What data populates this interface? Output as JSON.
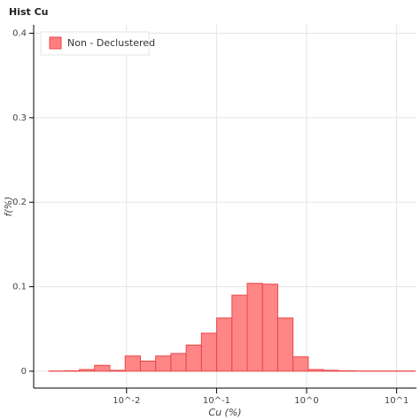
{
  "chart_data": {
    "type": "histogram",
    "title": "Hist Cu",
    "xlabel": "Cu (%)",
    "ylabel": "f(%)",
    "series": [
      {
        "name": "Non - Declustered",
        "color": "#ff7f7f",
        "bins": [
          0.001371,
          0.002025,
          0.002992,
          0.00442,
          0.006531,
          0.009649,
          0.01426,
          0.02106,
          0.03112,
          0.04597,
          0.06792,
          0.1003,
          0.1483,
          0.219,
          0.3236,
          0.4781,
          0.7063,
          1.043,
          1.542,
          2.278,
          3.365,
          4.972,
          7.345,
          10.85,
          16.03
        ],
        "values": [
          0.0003,
          0.0005,
          0.002,
          0.007,
          0.001,
          0.018,
          0.012,
          0.018,
          0.021,
          0.031,
          0.045,
          0.063,
          0.09,
          0.104,
          0.103,
          0.063,
          0.017,
          0.002,
          0.001,
          0.0005,
          0.0003,
          0.0003,
          0.0003,
          0.0003
        ]
      }
    ],
    "xscale": "log",
    "xlim": [
      0.00093,
      16.6
    ],
    "xticks": [
      {
        "value": 0.01,
        "label": "10^-2"
      },
      {
        "value": 0.1,
        "label": "10^-1"
      },
      {
        "value": 1,
        "label": "10^0"
      },
      {
        "value": 10,
        "label": "10^1"
      }
    ],
    "ylim": [
      -0.02,
      0.41
    ],
    "yticks": [
      0,
      0.1,
      0.2,
      0.3,
      0.4
    ],
    "grid": true,
    "legend": "top-left"
  }
}
